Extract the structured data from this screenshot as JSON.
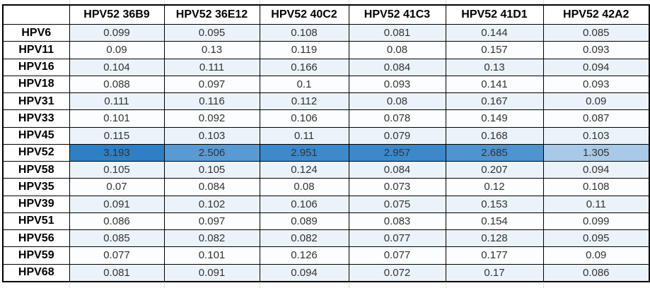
{
  "table": {
    "corner_label": "",
    "columns": [
      "HPV52 36B9",
      "HPV52 36E12",
      "HPV52 40C2",
      "HPV52 41C3",
      "HPV52 41D1",
      "HPV52 42A2"
    ],
    "rows": [
      {
        "label": "HPV6",
        "values": [
          0.099,
          0.095,
          0.108,
          0.081,
          0.144,
          0.085
        ]
      },
      {
        "label": "HPV11",
        "values": [
          0.09,
          0.13,
          0.119,
          0.08,
          0.157,
          0.093
        ]
      },
      {
        "label": "HPV16",
        "values": [
          0.104,
          0.111,
          0.166,
          0.084,
          0.13,
          0.094
        ]
      },
      {
        "label": "HPV18",
        "values": [
          0.088,
          0.097,
          0.1,
          0.093,
          0.141,
          0.093
        ]
      },
      {
        "label": "HPV31",
        "values": [
          0.111,
          0.116,
          0.112,
          0.08,
          0.167,
          0.09
        ]
      },
      {
        "label": "HPV33",
        "values": [
          0.101,
          0.092,
          0.106,
          0.078,
          0.149,
          0.087
        ]
      },
      {
        "label": "HPV45",
        "values": [
          0.115,
          0.103,
          0.11,
          0.079,
          0.168,
          0.103
        ]
      },
      {
        "label": "HPV52",
        "values": [
          3.193,
          2.506,
          2.951,
          2.957,
          2.685,
          1.305
        ]
      },
      {
        "label": "HPV58",
        "values": [
          0.105,
          0.105,
          0.124,
          0.084,
          0.207,
          0.094
        ]
      },
      {
        "label": "HPV35",
        "values": [
          0.07,
          0.084,
          0.08,
          0.073,
          0.12,
          0.108
        ]
      },
      {
        "label": "HPV39",
        "values": [
          0.091,
          0.102,
          0.106,
          0.075,
          0.153,
          0.11
        ]
      },
      {
        "label": "HPV51",
        "values": [
          0.086,
          0.097,
          0.089,
          0.083,
          0.154,
          0.099
        ]
      },
      {
        "label": "HPV56",
        "values": [
          0.085,
          0.082,
          0.082,
          0.077,
          0.128,
          0.095
        ]
      },
      {
        "label": "HPV59",
        "values": [
          0.077,
          0.101,
          0.126,
          0.077,
          0.177,
          0.09
        ]
      },
      {
        "label": "HPV68",
        "values": [
          0.081,
          0.091,
          0.094,
          0.072,
          0.17,
          0.086
        ]
      }
    ]
  },
  "colors": {
    "heat_scale_min": "#f8fbfe",
    "heat_scale_max": "#2e7fc6",
    "band_tinted": "#ebf3fa",
    "band_plain": "#fbfdfe",
    "grid_line": "#000000",
    "value_text": "#333333",
    "label_text": "#000000",
    "outer_gridline_stub": "#d7dee6"
  }
}
